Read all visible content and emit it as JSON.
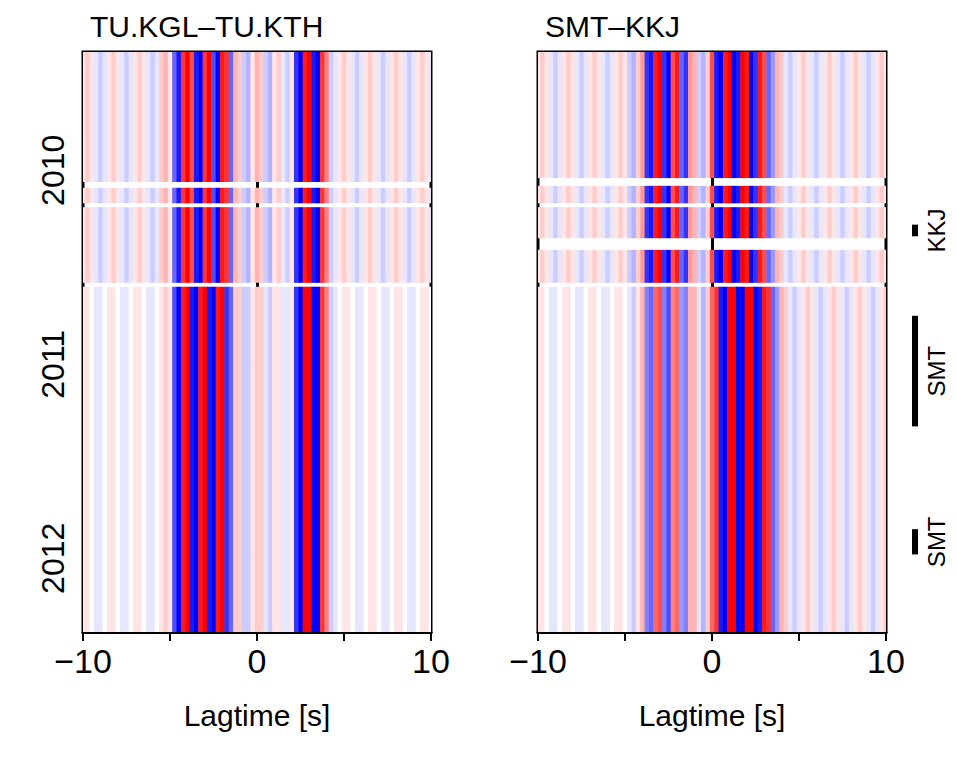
{
  "chart_data": [
    {
      "type": "heatmap",
      "title": "TU.KGL–TU.KTH",
      "xlabel": "Lagtime [s]",
      "xlim": [
        -10,
        10
      ],
      "xticks": [
        {
          "value": -10,
          "label": "−10"
        },
        0,
        10
      ],
      "ylim": [
        2009.39,
        2012.38
      ],
      "yticks": [
        2010,
        2011,
        2012
      ],
      "zlim": [
        -1,
        1
      ],
      "color": [
        "#0000ff",
        "#ffffff",
        "#ff0000"
      ],
      "x": [
        -10,
        -9.75,
        -9.5,
        -9.25,
        -9,
        -8.75,
        -8.5,
        -8.25,
        -8,
        -7.75,
        -7.5,
        -7.25,
        -7,
        -6.75,
        -6.5,
        -6.25,
        -6,
        -5.75,
        -5.5,
        -5.25,
        -5,
        -4.75,
        -4.5,
        -4.25,
        -4,
        -3.75,
        -3.5,
        -3.25,
        -3,
        -2.75,
        -2.5,
        -2.25,
        -2,
        -1.75,
        -1.5,
        -1.25,
        -1,
        -0.75,
        -0.5,
        -0.25,
        0,
        0.25,
        0.5,
        0.75,
        1,
        1.25,
        1.5,
        1.75,
        2,
        2.25,
        2.5,
        2.75,
        3,
        3.25,
        3.5,
        3.75,
        4,
        4.25,
        4.5,
        4.75,
        5,
        5.25,
        5.5,
        5.75,
        6,
        6.25,
        6.5,
        6.75,
        7,
        7.25,
        7.5,
        7.75,
        8,
        8.25,
        8.5,
        8.75,
        9,
        9.25,
        9.5,
        9.75,
        10
      ],
      "rows": [
        {
          "start": 2009.39,
          "end": 2010.06,
          "values": [
            0.1,
            0.2,
            0.1,
            -0.1,
            -0.2,
            -0.1,
            0.1,
            0.2,
            0.1,
            -0.1,
            -0.2,
            -0.1,
            0.1,
            0.2,
            0.1,
            -0.1,
            -0.2,
            -0.1,
            0.2,
            0.3,
            0.1,
            -0.6,
            -0.9,
            0.8,
            1,
            0.7,
            -0.9,
            -1,
            0.8,
            1,
            -0.7,
            -1,
            0.9,
            0.8,
            -0.6,
            0.3,
            0.2,
            -0.2,
            -0.3,
            0.1,
            0.3,
            0.2,
            -0.2,
            -0.3,
            0.1,
            0.2,
            -0.1,
            -0.2,
            0.1,
            -0.8,
            -1,
            0.9,
            1,
            -0.9,
            -1,
            0.8,
            0.5,
            -0.2,
            -0.1,
            0.1,
            0.2,
            0.1,
            -0.1,
            -0.2,
            -0.1,
            0.1,
            0.2,
            0.1,
            -0.1,
            -0.2,
            -0.1,
            0.1,
            0.2,
            0.1,
            -0.1,
            -0.2,
            -0.1,
            0.1,
            0.2,
            0.1,
            -0.1
          ]
        },
        {
          "start": 2010.09,
          "end": 2010.17,
          "values": [
            0.1,
            0.2,
            0.1,
            -0.1,
            -0.2,
            -0.1,
            0.1,
            0.2,
            0.1,
            -0.1,
            -0.2,
            -0.1,
            0.1,
            0.2,
            0.1,
            -0.1,
            -0.2,
            -0.1,
            0.2,
            0.3,
            0.1,
            -0.6,
            -0.9,
            0.8,
            1,
            0.7,
            -0.9,
            -1,
            0.8,
            1,
            -0.7,
            -1,
            0.9,
            0.8,
            -0.6,
            0.3,
            0.2,
            -0.2,
            -0.3,
            0.1,
            0.3,
            0.2,
            -0.2,
            -0.3,
            0.1,
            0.2,
            -0.1,
            -0.2,
            0.1,
            -0.8,
            -1,
            0.9,
            1,
            -0.9,
            -1,
            0.8,
            0.5,
            -0.2,
            -0.1,
            0.1,
            0.2,
            0.1,
            -0.1,
            -0.2,
            -0.1,
            0.1,
            0.2,
            0.1,
            -0.1,
            -0.2,
            -0.1,
            0.1,
            0.2,
            0.1,
            -0.1,
            -0.2,
            -0.1,
            0.1,
            0.2,
            0.1,
            -0.1
          ]
        },
        {
          "start": 2010.19,
          "end": 2010.58,
          "values": [
            0.1,
            0.2,
            0.1,
            -0.1,
            -0.2,
            -0.1,
            0.1,
            0.2,
            0.1,
            -0.1,
            -0.2,
            -0.1,
            0.1,
            0.2,
            0.1,
            -0.1,
            -0.2,
            -0.1,
            0.2,
            0.3,
            0.1,
            -0.6,
            -0.9,
            0.8,
            1,
            0.7,
            -0.9,
            -1,
            0.8,
            1,
            -0.7,
            -1,
            0.9,
            0.8,
            -0.6,
            0.3,
            0.2,
            -0.2,
            -0.3,
            0.1,
            0.3,
            0.2,
            -0.2,
            -0.3,
            0.1,
            0.2,
            -0.1,
            -0.2,
            0.1,
            -0.8,
            -1,
            0.9,
            1,
            -0.9,
            -1,
            0.8,
            0.5,
            -0.2,
            -0.1,
            0.1,
            0.2,
            0.1,
            -0.1,
            -0.2,
            -0.1,
            0.1,
            0.2,
            0.1,
            -0.1,
            -0.2,
            -0.1,
            0.1,
            0.2,
            0.1,
            -0.1,
            -0.2,
            -0.1,
            0.1,
            0.2,
            0.1,
            -0.1
          ]
        },
        {
          "start": 2010.6,
          "end": 2012.38,
          "values": [
            0.1,
            0.1,
            0,
            -0.1,
            -0.1,
            0,
            0.1,
            0.1,
            0,
            -0.1,
            -0.1,
            0,
            0.1,
            0.1,
            0,
            -0.1,
            -0.1,
            0,
            0.1,
            0.2,
            0.1,
            -0.7,
            -1,
            0.9,
            1,
            -0.9,
            -1,
            0.9,
            1,
            -0.9,
            -1,
            0.9,
            1,
            -0.8,
            -0.6,
            0.2,
            0.2,
            -0.2,
            -0.2,
            0.1,
            0.2,
            0.2,
            -0.1,
            -0.2,
            0.1,
            0.1,
            -0.1,
            -0.1,
            0.1,
            -0.8,
            -1,
            1,
            1,
            -1,
            -1,
            0.8,
            0.5,
            -0.2,
            -0.1,
            0,
            0.1,
            0.1,
            0,
            -0.1,
            -0.1,
            0,
            0.1,
            0.1,
            0,
            -0.1,
            -0.1,
            0,
            0.1,
            0.1,
            0,
            -0.1,
            -0.1,
            0,
            0.1,
            0.1,
            0
          ]
        }
      ]
    },
    {
      "type": "heatmap",
      "title": "SMT–KKJ",
      "xlabel": "Lagtime [s]",
      "xlim": [
        -10,
        10
      ],
      "xticks": [
        {
          "value": -10,
          "label": "−10"
        },
        0,
        10
      ],
      "ylim": [
        2009.39,
        2012.38
      ],
      "yticks": [
        2010,
        2011,
        2012
      ],
      "tick_labels": "x",
      "zlim": [
        -1,
        1
      ],
      "color": [
        "#0000ff",
        "#ffffff",
        "#ff0000"
      ],
      "x": [
        -10,
        -9.75,
        -9.5,
        -9.25,
        -9,
        -8.75,
        -8.5,
        -8.25,
        -8,
        -7.75,
        -7.5,
        -7.25,
        -7,
        -6.75,
        -6.5,
        -6.25,
        -6,
        -5.75,
        -5.5,
        -5.25,
        -5,
        -4.75,
        -4.5,
        -4.25,
        -4,
        -3.75,
        -3.5,
        -3.25,
        -3,
        -2.75,
        -2.5,
        -2.25,
        -2,
        -1.75,
        -1.5,
        -1.25,
        -1,
        -0.75,
        -0.5,
        -0.25,
        0,
        0.25,
        0.5,
        0.75,
        1,
        1.25,
        1.5,
        1.75,
        2,
        2.25,
        2.5,
        2.75,
        3,
        3.25,
        3.5,
        3.75,
        4,
        4.25,
        4.5,
        4.75,
        5,
        5.25,
        5.5,
        5.75,
        6,
        6.25,
        6.5,
        6.75,
        7,
        7.25,
        7.5,
        7.75,
        8,
        8.25,
        8.5,
        8.75,
        9,
        9.25,
        9.5,
        9.75,
        10
      ],
      "rows": [
        {
          "start": 2009.39,
          "end": 2010.04,
          "values": [
            0.1,
            0.2,
            0.1,
            -0.1,
            -0.2,
            -0.1,
            0.1,
            0.2,
            0.1,
            -0.1,
            -0.2,
            -0.1,
            0.1,
            0.2,
            0.1,
            -0.1,
            -0.2,
            -0.1,
            0.1,
            0.2,
            0.1,
            -0.2,
            -0.3,
            0.2,
            0.4,
            -0.8,
            -0.9,
            0.9,
            1,
            -0.8,
            -1,
            0.7,
            0.9,
            -0.6,
            -0.8,
            0.4,
            0.3,
            -0.2,
            -0.3,
            0.2,
            0.7,
            -0.9,
            -1,
            0.9,
            1,
            -1,
            -0.9,
            1,
            0.9,
            -1,
            -0.8,
            0.9,
            0.7,
            -0.6,
            -0.4,
            0.3,
            0.2,
            -0.1,
            -0.2,
            -0.1,
            0.1,
            0.2,
            0.1,
            -0.1,
            -0.2,
            -0.1,
            0.1,
            0.2,
            0.1,
            -0.1,
            -0.2,
            -0.1,
            0.1,
            0.2,
            0.1,
            -0.1,
            -0.2,
            -0.1,
            0.1,
            0.2,
            0.1
          ]
        },
        {
          "start": 2010.08,
          "end": 2010.17,
          "values": [
            0.1,
            0.2,
            0.1,
            -0.1,
            -0.2,
            -0.1,
            0.1,
            0.2,
            0.1,
            -0.1,
            -0.2,
            -0.1,
            0.1,
            0.2,
            0.1,
            -0.1,
            -0.2,
            -0.1,
            0.1,
            0.2,
            0.1,
            -0.2,
            -0.3,
            0.2,
            0.4,
            -0.8,
            -0.9,
            0.9,
            1,
            -0.8,
            -1,
            0.7,
            0.9,
            -0.6,
            -0.8,
            0.4,
            0.3,
            -0.2,
            -0.3,
            0.2,
            0.7,
            -0.9,
            -1,
            0.9,
            1,
            -1,
            -0.9,
            1,
            0.9,
            -1,
            -0.8,
            0.9,
            0.7,
            -0.6,
            -0.4,
            0.3,
            0.2,
            -0.1,
            -0.2,
            -0.1,
            0.1,
            0.2,
            0.1,
            -0.1,
            -0.2,
            -0.1,
            0.1,
            0.2,
            0.1,
            -0.1,
            -0.2,
            -0.1,
            0.1,
            0.2,
            0.1,
            -0.1,
            -0.2,
            -0.1,
            0.1,
            0.2,
            0.1
          ]
        },
        {
          "start": 2010.19,
          "end": 2010.35,
          "values": [
            0.1,
            0.2,
            0.1,
            -0.1,
            -0.2,
            -0.1,
            0.1,
            0.2,
            0.1,
            -0.1,
            -0.2,
            -0.1,
            0.1,
            0.2,
            0.1,
            -0.1,
            -0.2,
            -0.1,
            0.1,
            0.2,
            0.1,
            -0.2,
            -0.3,
            0.2,
            0.4,
            -0.8,
            -0.9,
            0.9,
            1,
            -0.8,
            -1,
            0.7,
            0.9,
            -0.6,
            -0.8,
            0.4,
            0.3,
            -0.2,
            -0.3,
            0.2,
            0.7,
            -0.9,
            -1,
            0.9,
            1,
            -1,
            -0.9,
            1,
            0.9,
            -1,
            -0.8,
            0.9,
            0.7,
            -0.6,
            -0.4,
            0.3,
            0.2,
            -0.1,
            -0.2,
            -0.1,
            0.1,
            0.2,
            0.1,
            -0.1,
            -0.2,
            -0.1,
            0.1,
            0.2,
            0.1,
            -0.1,
            -0.2,
            -0.1,
            0.1,
            0.2,
            0.1,
            -0.1,
            -0.2,
            -0.1,
            0.1,
            0.2,
            0.1
          ]
        },
        {
          "start": 2010.41,
          "end": 2010.58,
          "values": [
            0.1,
            0.2,
            0.1,
            -0.1,
            -0.2,
            -0.1,
            0.1,
            0.2,
            0.1,
            -0.1,
            -0.2,
            -0.1,
            0.1,
            0.2,
            0.1,
            -0.1,
            -0.2,
            -0.1,
            0.1,
            0.2,
            0.1,
            -0.2,
            -0.3,
            0.2,
            0.4,
            -0.8,
            -0.9,
            0.9,
            1,
            -0.8,
            -1,
            0.7,
            0.9,
            -0.6,
            -0.8,
            0.4,
            0.3,
            -0.2,
            -0.3,
            0.2,
            0.7,
            -0.9,
            -1,
            0.9,
            1,
            -1,
            -0.9,
            1,
            0.9,
            -1,
            -0.8,
            0.9,
            0.7,
            -0.6,
            -0.4,
            0.3,
            0.2,
            -0.1,
            -0.2,
            -0.1,
            0.1,
            0.2,
            0.1,
            -0.1,
            -0.2,
            -0.1,
            0.1,
            0.2,
            0.1,
            -0.1,
            -0.2,
            -0.1,
            0.1,
            0.2,
            0.1,
            -0.1,
            -0.2,
            -0.1,
            0.1,
            0.2,
            0.1
          ]
        },
        {
          "start": 2010.6,
          "end": 2012.38,
          "values": [
            0.1,
            0.1,
            0,
            -0.1,
            -0.1,
            0,
            0.1,
            0.1,
            0,
            -0.1,
            -0.1,
            0,
            0.1,
            0.1,
            0,
            -0.1,
            -0.1,
            0,
            0.1,
            0.1,
            0,
            -0.1,
            -0.2,
            0.1,
            0.3,
            -0.5,
            -0.6,
            0.6,
            0.7,
            -0.5,
            -0.7,
            0.5,
            0.6,
            -0.4,
            -0.5,
            0.3,
            0.3,
            -0.1,
            -0.3,
            0.2,
            0.6,
            0.8,
            -0.9,
            -1,
            1,
            1,
            -1,
            -1,
            1,
            1,
            -1,
            -0.9,
            0.9,
            0.8,
            -0.6,
            -0.4,
            0.3,
            0.2,
            -0.1,
            -0.2,
            -0.1,
            0.1,
            0.2,
            0.1,
            -0.1,
            -0.2,
            -0.1,
            0.1,
            0.2,
            0.1,
            -0.1,
            -0.2,
            -0.1,
            0.1,
            0.2,
            0.1,
            -0.1,
            -0.2,
            -0.1,
            0.1,
            0.2
          ]
        }
      ],
      "annotations": [
        {
          "label": "KKJ",
          "start": 2010.28,
          "end": 2010.34
        },
        {
          "label": "SMT",
          "start": 2010.75,
          "end": 2011.32
        },
        {
          "label": "SMT",
          "start": 2011.85,
          "end": 2011.98
        }
      ]
    }
  ]
}
